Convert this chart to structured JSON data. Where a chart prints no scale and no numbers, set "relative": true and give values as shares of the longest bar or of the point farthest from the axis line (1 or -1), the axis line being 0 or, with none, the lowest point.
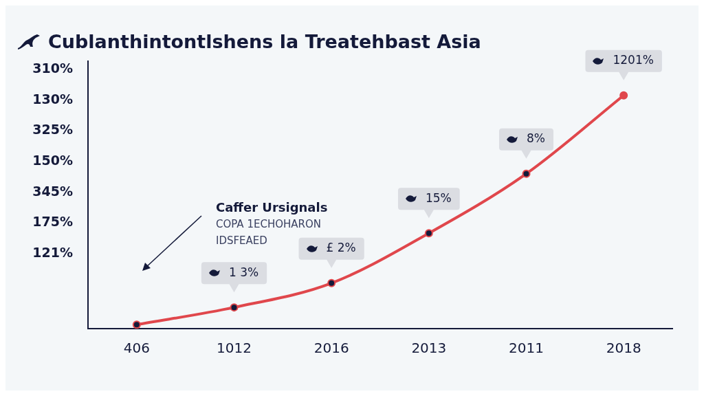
{
  "chart_data": {
    "type": "line",
    "title": "Cublanthintontlshens la Treatehbast Asia",
    "categories": [
      "406",
      "1012",
      "2016",
      "2013",
      "2011",
      "2018"
    ],
    "series": [
      {
        "color": "#e0474c",
        "values": [
          0.017,
          0.091,
          0.195,
          0.409,
          0.664,
          1
        ]
      }
    ],
    "relative": true,
    "annotations": [
      "Caffer Ursignals\nCOPA 1ECHOHARON\nIDSFEAED",
      "310%",
      "130%",
      "325%",
      "150%",
      "345%",
      "175%",
      "121%",
      {
        "text": "1 3%",
        "x": "1012",
        "y": 0.091
      },
      {
        "text": "£ 2%",
        "x": "2016",
        "y": 0.195
      },
      {
        "text": "15%",
        "x": "2013",
        "y": 0.409
      },
      {
        "text": "8%",
        "x": "2011",
        "y": 0.664
      },
      {
        "text": "1201%",
        "x": "2018",
        "y": 1
      }
    ],
    "grid": false,
    "legend": false,
    "marker": "circle",
    "line_style": "solid"
  }
}
